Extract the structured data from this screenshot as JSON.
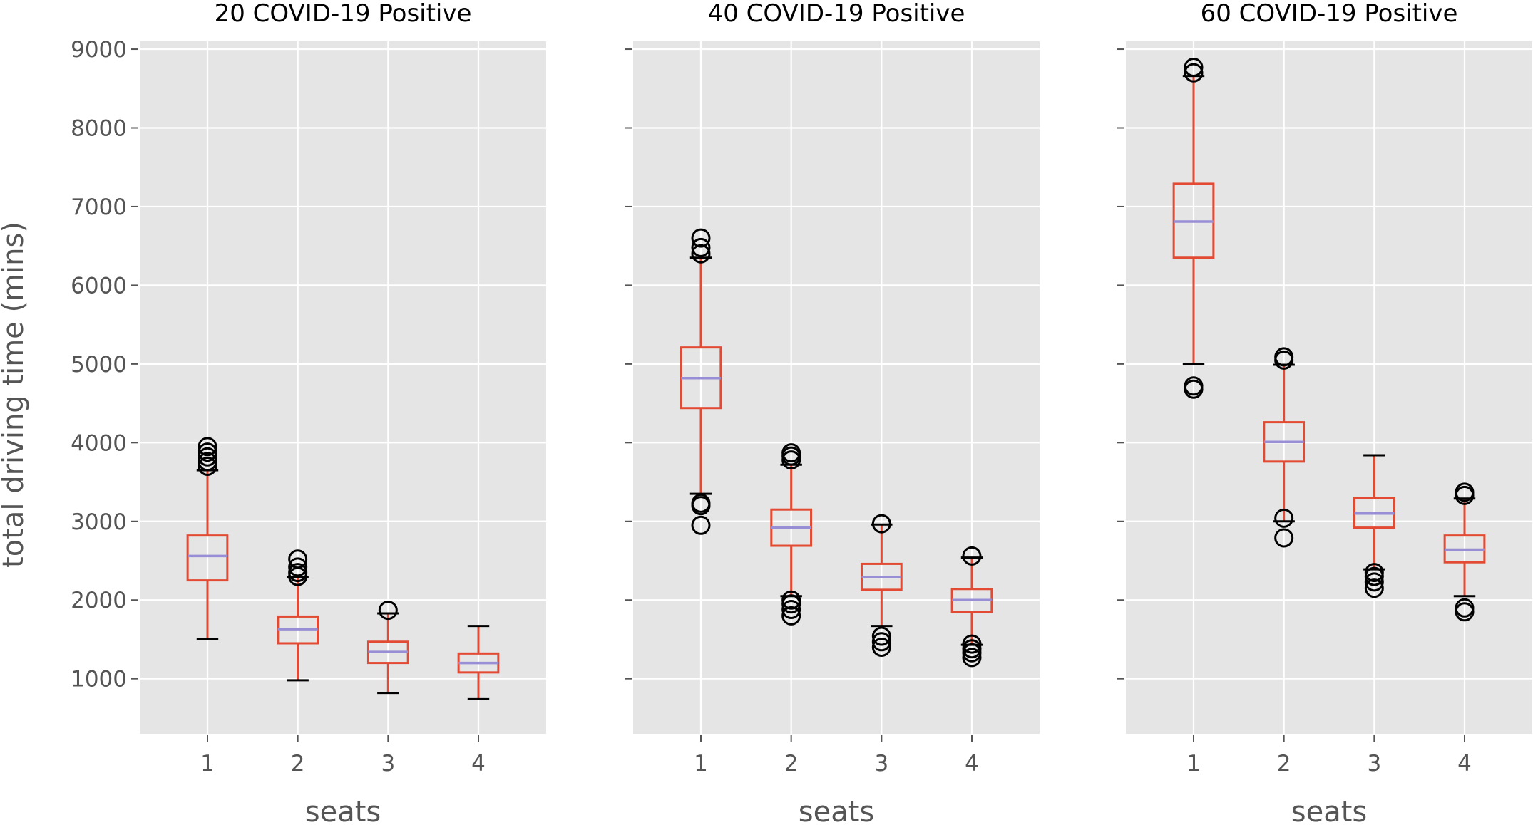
{
  "figure": {
    "ylabel": "total driving time (mins)"
  },
  "style": {
    "panel_bg": "#E5E5E5",
    "grid": "#FFFFFF",
    "box_color": "#E24A33",
    "median_color": "#988ED5",
    "flier_color": "#000000",
    "text_color": "#555555",
    "title_color": "#000000"
  },
  "chart_data": [
    {
      "type": "boxplot",
      "title": "20 COVID-19 Positive",
      "xlabel": "seats",
      "ylabel": "total driving time (mins)",
      "ylim": [
        300,
        9100
      ],
      "yticks": [
        1000,
        2000,
        3000,
        4000,
        5000,
        6000,
        7000,
        8000,
        9000
      ],
      "categories": [
        "1",
        "2",
        "3",
        "4"
      ],
      "grid": true,
      "boxes": [
        {
          "whislo": 1500,
          "q1": 2250,
          "med": 2560,
          "q3": 2820,
          "whishi": 3650,
          "fliers": [
            3700,
            3760,
            3820,
            3880,
            3950
          ]
        },
        {
          "whislo": 980,
          "q1": 1450,
          "med": 1630,
          "q3": 1790,
          "whishi": 2290,
          "fliers": [
            2300,
            2350,
            2420,
            2520
          ]
        },
        {
          "whislo": 820,
          "q1": 1200,
          "med": 1340,
          "q3": 1470,
          "whishi": 1830,
          "fliers": [
            1870
          ]
        },
        {
          "whislo": 740,
          "q1": 1080,
          "med": 1200,
          "q3": 1320,
          "whishi": 1670,
          "fliers": []
        }
      ]
    },
    {
      "type": "boxplot",
      "title": "40 COVID-19 Positive",
      "xlabel": "seats",
      "ylabel": "",
      "ylim": [
        300,
        9100
      ],
      "yticks": [
        1000,
        2000,
        3000,
        4000,
        5000,
        6000,
        7000,
        8000,
        9000
      ],
      "categories": [
        "1",
        "2",
        "3",
        "4"
      ],
      "grid": true,
      "boxes": [
        {
          "whislo": 3350,
          "q1": 4440,
          "med": 4820,
          "q3": 5210,
          "whishi": 6350,
          "fliers": [
            2950,
            3200,
            3230,
            6400,
            6480,
            6600
          ]
        },
        {
          "whislo": 2050,
          "q1": 2690,
          "med": 2920,
          "q3": 3150,
          "whishi": 3720,
          "fliers": [
            1800,
            1880,
            1950,
            2000,
            3780,
            3830,
            3870
          ]
        },
        {
          "whislo": 1670,
          "q1": 2130,
          "med": 2290,
          "q3": 2460,
          "whishi": 2960,
          "fliers": [
            1400,
            1470,
            1540,
            2970
          ]
        },
        {
          "whislo": 1430,
          "q1": 1850,
          "med": 2000,
          "q3": 2140,
          "whishi": 2540,
          "fliers": [
            1270,
            1330,
            1380,
            1440,
            2560
          ]
        }
      ]
    },
    {
      "type": "boxplot",
      "title": "60 COVID-19 Positive",
      "xlabel": "seats",
      "ylabel": "",
      "ylim": [
        300,
        9100
      ],
      "yticks": [
        1000,
        2000,
        3000,
        4000,
        5000,
        6000,
        7000,
        8000,
        9000
      ],
      "categories": [
        "1",
        "2",
        "3",
        "4"
      ],
      "grid": true,
      "boxes": [
        {
          "whislo": 5000,
          "q1": 6350,
          "med": 6810,
          "q3": 7290,
          "whishi": 8660,
          "fliers": [
            4680,
            4720,
            8700,
            8770
          ]
        },
        {
          "whislo": 3000,
          "q1": 3760,
          "med": 4010,
          "q3": 4260,
          "whishi": 4990,
          "fliers": [
            2790,
            3040,
            5050,
            5090
          ]
        },
        {
          "whislo": 2390,
          "q1": 2920,
          "med": 3100,
          "q3": 3300,
          "whishi": 3840,
          "fliers": [
            2150,
            2230,
            2300,
            2350
          ]
        },
        {
          "whislo": 2050,
          "q1": 2480,
          "med": 2640,
          "q3": 2820,
          "whishi": 3290,
          "fliers": [
            1850,
            1900,
            3330,
            3370
          ]
        }
      ]
    }
  ]
}
